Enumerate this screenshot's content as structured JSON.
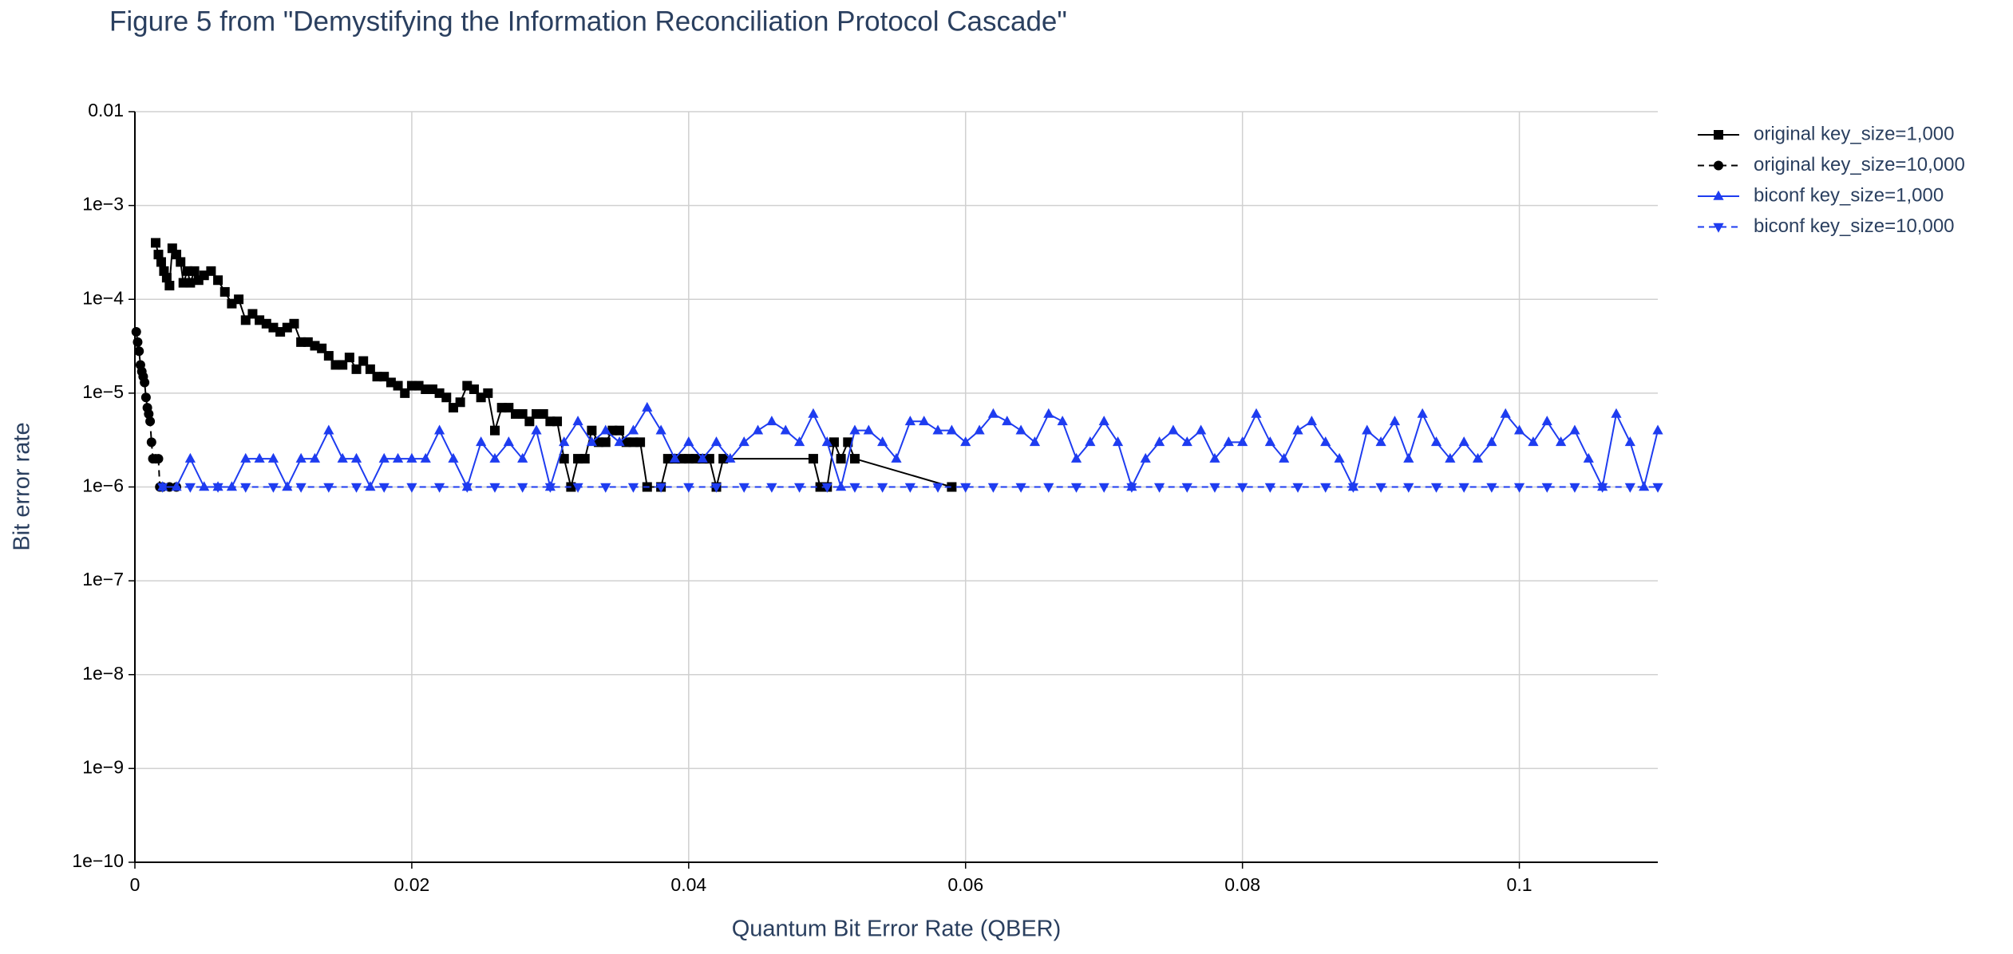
{
  "chart_data": {
    "type": "line",
    "title": "Figure 5 from \"Demystifying the Information Reconciliation Protocol Cascade\"",
    "x_label": "Quantum Bit Error Rate (QBER)",
    "y_label": "Bit error rate",
    "log_y": true,
    "grid": true,
    "legend_position": "outside-top-right",
    "xlim": [
      0,
      0.11
    ],
    "xticks": [
      0,
      0.02,
      0.04,
      0.06,
      0.08,
      0.1
    ],
    "ylim": [
      1e-10,
      0.01
    ],
    "yticks": [
      {
        "value": 1e-10,
        "label": "1e−10"
      },
      {
        "value": 1e-09,
        "label": "1e−9"
      },
      {
        "value": 1e-08,
        "label": "1e−8"
      },
      {
        "value": 1e-07,
        "label": "1e−7"
      },
      {
        "value": 1e-06,
        "label": "1e−6"
      },
      {
        "value": 1e-05,
        "label": "1e−5"
      },
      {
        "value": 0.0001,
        "label": "1e−4"
      },
      {
        "value": 0.001,
        "label": "1e−3"
      },
      0.01
    ],
    "series": [
      {
        "name": "original key_size=1,000",
        "color": "#000000",
        "marker": "square",
        "dash": "solid",
        "x": [
          0.0015,
          0.0017,
          0.0019,
          0.0021,
          0.0023,
          0.0025,
          0.0027,
          0.003,
          0.0033,
          0.0035,
          0.0038,
          0.004,
          0.0043,
          0.0046,
          0.005,
          0.0055,
          0.006,
          0.0065,
          0.007,
          0.0075,
          0.008,
          0.0085,
          0.009,
          0.0095,
          0.01,
          0.0105,
          0.011,
          0.0115,
          0.012,
          0.0125,
          0.013,
          0.0135,
          0.014,
          0.0145,
          0.015,
          0.0155,
          0.016,
          0.0165,
          0.017,
          0.0175,
          0.018,
          0.0185,
          0.019,
          0.0195,
          0.02,
          0.0205,
          0.021,
          0.0215,
          0.022,
          0.0225,
          0.023,
          0.0235,
          0.024,
          0.0245,
          0.025,
          0.0255,
          0.026,
          0.0265,
          0.027,
          0.0275,
          0.028,
          0.0285,
          0.029,
          0.0295,
          0.03,
          0.0305,
          0.031,
          0.0315,
          0.032,
          0.0325,
          0.033,
          0.0335,
          0.034,
          0.0345,
          0.035,
          0.0355,
          0.036,
          0.0365,
          0.037,
          0.038,
          0.0385,
          0.039,
          0.0395,
          0.04,
          0.0405,
          0.041,
          0.0415,
          0.042,
          0.0425,
          0.049,
          0.0495,
          0.05,
          0.0505,
          0.051,
          0.0515,
          0.052,
          0.059
        ],
        "values": [
          0.0004,
          0.0003,
          0.00025,
          0.0002,
          0.00017,
          0.00014,
          0.00035,
          0.0003,
          0.00025,
          0.00015,
          0.0002,
          0.00015,
          0.0002,
          0.00016,
          0.00018,
          0.0002,
          0.00016,
          0.00012,
          9e-05,
          0.0001,
          6e-05,
          7e-05,
          6e-05,
          5.5e-05,
          5e-05,
          4.5e-05,
          5e-05,
          5.5e-05,
          3.5e-05,
          3.5e-05,
          3.2e-05,
          3e-05,
          2.5e-05,
          2e-05,
          2e-05,
          2.4e-05,
          1.8e-05,
          2.2e-05,
          1.8e-05,
          1.5e-05,
          1.5e-05,
          1.3e-05,
          1.2e-05,
          1e-05,
          1.2e-05,
          1.2e-05,
          1.1e-05,
          1.1e-05,
          1e-05,
          9e-06,
          7e-06,
          8e-06,
          1.2e-05,
          1.1e-05,
          9e-06,
          1e-05,
          4e-06,
          7e-06,
          7e-06,
          6e-06,
          6e-06,
          5e-06,
          6e-06,
          6e-06,
          5e-06,
          5e-06,
          2e-06,
          1e-06,
          2e-06,
          2e-06,
          4e-06,
          3e-06,
          3e-06,
          4e-06,
          4e-06,
          3e-06,
          3e-06,
          3e-06,
          1e-06,
          1e-06,
          2e-06,
          2e-06,
          2e-06,
          2e-06,
          2e-06,
          2e-06,
          2e-06,
          1e-06,
          2e-06,
          2e-06,
          1e-06,
          1e-06,
          3e-06,
          2e-06,
          3e-06,
          2e-06,
          1e-06
        ]
      },
      {
        "name": "original key_size=10,000",
        "color": "#000000",
        "marker": "circle",
        "dash": "dash",
        "x": [
          0.0001,
          0.0002,
          0.0003,
          0.0004,
          0.0005,
          0.0006,
          0.0007,
          0.0008,
          0.0009,
          0.001,
          0.0011,
          0.0012,
          0.0013,
          0.0015,
          0.0017,
          0.0018,
          0.002,
          0.0025,
          0.003
        ],
        "values": [
          4.5e-05,
          3.5e-05,
          2.8e-05,
          2e-05,
          1.7e-05,
          1.5e-05,
          1.3e-05,
          9e-06,
          7e-06,
          6e-06,
          5e-06,
          3e-06,
          2e-06,
          2e-06,
          2e-06,
          1e-06,
          1e-06,
          1e-06,
          1e-06
        ]
      },
      {
        "name": "biconf key_size=1,000",
        "color": "#1e3cf0",
        "marker": "triangle-up",
        "dash": "solid",
        "x": [
          0.002,
          0.003,
          0.004,
          0.005,
          0.006,
          0.007,
          0.008,
          0.009,
          0.01,
          0.011,
          0.012,
          0.013,
          0.014,
          0.015,
          0.016,
          0.017,
          0.018,
          0.019,
          0.02,
          0.021,
          0.022,
          0.023,
          0.024,
          0.025,
          0.026,
          0.027,
          0.028,
          0.029,
          0.03,
          0.031,
          0.032,
          0.033,
          0.034,
          0.035,
          0.036,
          0.037,
          0.038,
          0.039,
          0.04,
          0.041,
          0.042,
          0.043,
          0.044,
          0.045,
          0.046,
          0.047,
          0.048,
          0.049,
          0.05,
          0.051,
          0.052,
          0.053,
          0.054,
          0.055,
          0.056,
          0.057,
          0.058,
          0.059,
          0.06,
          0.061,
          0.062,
          0.063,
          0.064,
          0.065,
          0.066,
          0.067,
          0.068,
          0.069,
          0.07,
          0.071,
          0.072,
          0.073,
          0.074,
          0.075,
          0.076,
          0.077,
          0.078,
          0.079,
          0.08,
          0.081,
          0.082,
          0.083,
          0.084,
          0.085,
          0.086,
          0.087,
          0.088,
          0.089,
          0.09,
          0.091,
          0.092,
          0.093,
          0.094,
          0.095,
          0.096,
          0.097,
          0.098,
          0.099,
          0.1,
          0.101,
          0.102,
          0.103,
          0.104,
          0.105,
          0.106,
          0.107,
          0.108,
          0.109,
          0.11
        ],
        "values": [
          1e-06,
          1e-06,
          2e-06,
          1e-06,
          1e-06,
          1e-06,
          2e-06,
          2e-06,
          2e-06,
          1e-06,
          2e-06,
          2e-06,
          4e-06,
          2e-06,
          2e-06,
          1e-06,
          2e-06,
          2e-06,
          2e-06,
          2e-06,
          4e-06,
          2e-06,
          1e-06,
          3e-06,
          2e-06,
          3e-06,
          2e-06,
          4e-06,
          1e-06,
          3e-06,
          5e-06,
          3e-06,
          4e-06,
          3e-06,
          4e-06,
          7e-06,
          4e-06,
          2e-06,
          3e-06,
          2e-06,
          3e-06,
          2e-06,
          3e-06,
          4e-06,
          5e-06,
          4e-06,
          3e-06,
          6e-06,
          3e-06,
          1e-06,
          4e-06,
          4e-06,
          3e-06,
          2e-06,
          5e-06,
          5e-06,
          4e-06,
          4e-06,
          3e-06,
          4e-06,
          6e-06,
          5e-06,
          4e-06,
          3e-06,
          6e-06,
          5e-06,
          2e-06,
          3e-06,
          5e-06,
          3e-06,
          1e-06,
          2e-06,
          3e-06,
          4e-06,
          3e-06,
          4e-06,
          2e-06,
          3e-06,
          3e-06,
          6e-06,
          3e-06,
          2e-06,
          4e-06,
          5e-06,
          3e-06,
          2e-06,
          1e-06,
          4e-06,
          3e-06,
          5e-06,
          2e-06,
          6e-06,
          3e-06,
          2e-06,
          3e-06,
          2e-06,
          3e-06,
          6e-06,
          4e-06,
          3e-06,
          5e-06,
          3e-06,
          4e-06,
          2e-06,
          1e-06,
          6e-06,
          3e-06,
          1e-06,
          4e-06
        ]
      },
      {
        "name": "biconf key_size=10,000",
        "color": "#1e3cf0",
        "marker": "triangle-down",
        "dash": "dash",
        "x": [
          0.002,
          0.004,
          0.006,
          0.008,
          0.01,
          0.012,
          0.014,
          0.016,
          0.018,
          0.02,
          0.022,
          0.024,
          0.026,
          0.028,
          0.03,
          0.032,
          0.034,
          0.036,
          0.038,
          0.04,
          0.042,
          0.044,
          0.046,
          0.048,
          0.05,
          0.052,
          0.054,
          0.056,
          0.058,
          0.06,
          0.062,
          0.064,
          0.066,
          0.068,
          0.07,
          0.072,
          0.074,
          0.076,
          0.078,
          0.08,
          0.082,
          0.084,
          0.086,
          0.088,
          0.09,
          0.092,
          0.094,
          0.096,
          0.098,
          0.1,
          0.102,
          0.104,
          0.106,
          0.108,
          0.11
        ],
        "values": [
          1e-06,
          1e-06,
          1e-06,
          1e-06,
          1e-06,
          1e-06,
          1e-06,
          1e-06,
          1e-06,
          1e-06,
          1e-06,
          1e-06,
          1e-06,
          1e-06,
          1e-06,
          1e-06,
          1e-06,
          1e-06,
          1e-06,
          1e-06,
          1e-06,
          1e-06,
          1e-06,
          1e-06,
          1e-06,
          1e-06,
          1e-06,
          1e-06,
          1e-06,
          1e-06,
          1e-06,
          1e-06,
          1e-06,
          1e-06,
          1e-06,
          1e-06,
          1e-06,
          1e-06,
          1e-06,
          1e-06,
          1e-06,
          1e-06,
          1e-06,
          1e-06,
          1e-06,
          1e-06,
          1e-06,
          1e-06,
          1e-06,
          1e-06,
          1e-06,
          1e-06,
          1e-06,
          1e-06,
          1e-06
        ]
      }
    ]
  }
}
